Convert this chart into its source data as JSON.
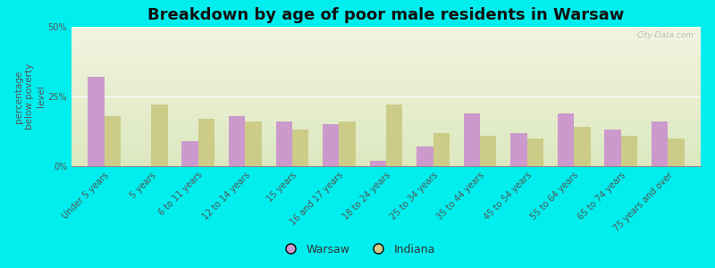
{
  "title": "Breakdown by age of poor male residents in Warsaw",
  "ylabel": "percentage\nbelow poverty\nlevel",
  "categories": [
    "Under 5 years",
    "5 years",
    "6 to 11 years",
    "12 to 14 years",
    "15 years",
    "16 and 17 years",
    "18 to 24 years",
    "25 to 34 years",
    "35 to 44 years",
    "45 to 54 years",
    "55 to 64 years",
    "65 to 74 years",
    "75 years and over"
  ],
  "warsaw_values": [
    32,
    0,
    9,
    18,
    16,
    15,
    2,
    7,
    19,
    12,
    19,
    13,
    16
  ],
  "indiana_values": [
    18,
    22,
    17,
    16,
    13,
    16,
    22,
    12,
    11,
    10,
    14,
    11,
    10
  ],
  "warsaw_color": "#cc99cc",
  "indiana_color": "#cccc88",
  "background_color": "#00eeee",
  "grad_top": "#f2f5e0",
  "grad_bottom": "#dde8c0",
  "ylim": [
    0,
    50
  ],
  "yticks": [
    0,
    25,
    50
  ],
  "ytick_labels": [
    "0%",
    "25%",
    "50%"
  ],
  "bar_width": 0.35,
  "title_fontsize": 13,
  "axis_label_fontsize": 7.5,
  "tick_fontsize": 7,
  "legend_warsaw": "Warsaw",
  "legend_indiana": "Indiana",
  "watermark": "City-Data.com"
}
